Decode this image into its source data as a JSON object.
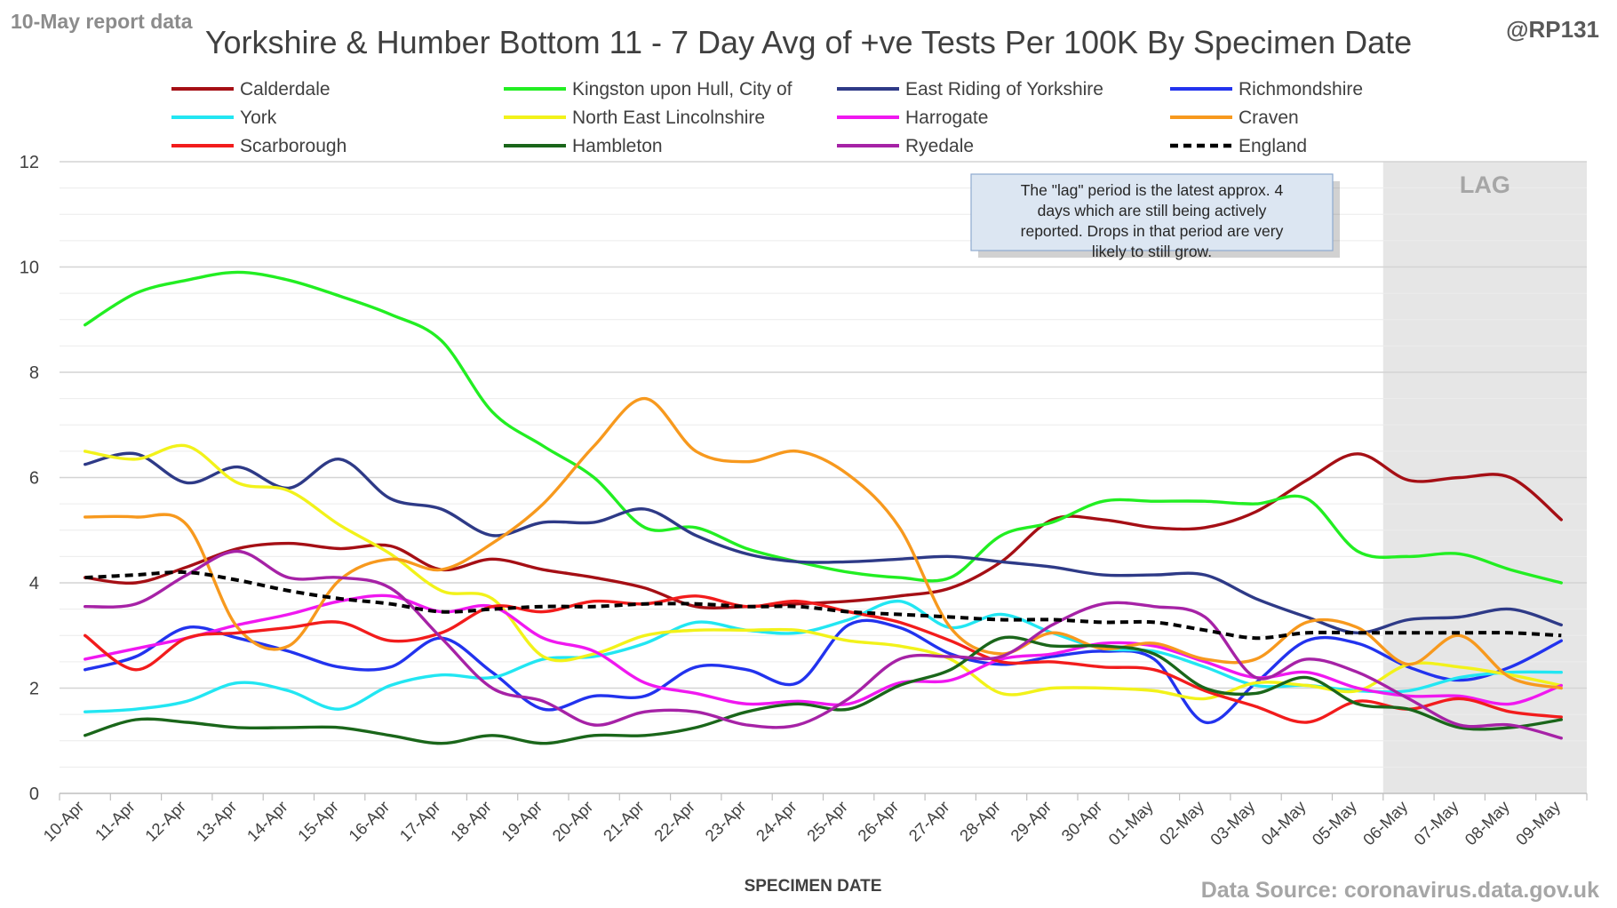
{
  "chart_data": {
    "type": "line",
    "title": "Yorkshire & Humber Bottom 11 - 7 Day Avg of +ve Tests Per 100K By Specimen Date",
    "corner_left": "10-May report data",
    "corner_right": "@RP131",
    "xlabel": "SPECIMEN DATE",
    "ylabel": "",
    "source": "Data Source: coronavirus.data.gov.uk",
    "ylim": [
      0,
      12
    ],
    "yticks": [
      0,
      2,
      4,
      6,
      8,
      10,
      12
    ],
    "grid": true,
    "legend_position": "top",
    "lag_label": "LAG",
    "lag_start_index": 26,
    "annotation": "The \"lag\" period is the latest approx. 4 days which are still being actively reported. Drops in that period are very likely to still grow.",
    "categories": [
      "10-Apr",
      "11-Apr",
      "12-Apr",
      "13-Apr",
      "14-Apr",
      "15-Apr",
      "16-Apr",
      "17-Apr",
      "18-Apr",
      "19-Apr",
      "20-Apr",
      "21-Apr",
      "22-Apr",
      "23-Apr",
      "24-Apr",
      "25-Apr",
      "26-Apr",
      "27-Apr",
      "28-Apr",
      "29-Apr",
      "30-Apr",
      "01-May",
      "02-May",
      "03-May",
      "04-May",
      "05-May",
      "06-May",
      "07-May",
      "08-May",
      "09-May"
    ],
    "series": [
      {
        "name": "Calderdale",
        "color": "#a50f15",
        "dashed": false,
        "values": [
          4.1,
          4.0,
          4.3,
          4.65,
          4.75,
          4.65,
          4.7,
          4.25,
          4.45,
          4.25,
          4.1,
          3.9,
          3.55,
          3.55,
          3.6,
          3.65,
          3.75,
          3.9,
          4.4,
          5.2,
          5.2,
          5.05,
          5.05,
          5.35,
          5.95,
          6.45,
          5.95,
          6.0,
          6.0,
          5.2
        ]
      },
      {
        "name": "Kingston upon Hull, City of",
        "color": "#22ee22",
        "dashed": false,
        "values": [
          8.9,
          9.5,
          9.75,
          9.9,
          9.75,
          9.45,
          9.1,
          8.6,
          7.25,
          6.6,
          6.0,
          5.05,
          5.05,
          4.65,
          4.4,
          4.2,
          4.1,
          4.1,
          4.9,
          5.15,
          5.55,
          5.55,
          5.55,
          5.5,
          5.6,
          4.6,
          4.5,
          4.55,
          4.25,
          4.0
        ]
      },
      {
        "name": "East Riding of Yorkshire",
        "color": "#2e3a87",
        "dashed": false,
        "values": [
          6.25,
          6.45,
          5.9,
          6.2,
          5.8,
          6.35,
          5.6,
          5.4,
          4.9,
          5.15,
          5.15,
          5.4,
          4.9,
          4.55,
          4.4,
          4.4,
          4.45,
          4.5,
          4.4,
          4.3,
          4.15,
          4.15,
          4.15,
          3.7,
          3.35,
          3.05,
          3.3,
          3.35,
          3.5,
          3.2
        ]
      },
      {
        "name": "Richmondshire",
        "color": "#2233ee",
        "dashed": false,
        "values": [
          2.35,
          2.6,
          3.15,
          2.95,
          2.7,
          2.4,
          2.4,
          2.95,
          2.3,
          1.6,
          1.85,
          1.85,
          2.4,
          2.35,
          2.1,
          3.2,
          3.15,
          2.65,
          2.45,
          2.6,
          2.7,
          2.55,
          1.35,
          2.1,
          2.9,
          2.85,
          2.4,
          2.15,
          2.4,
          2.9
        ]
      },
      {
        "name": "York",
        "color": "#22e6f2",
        "dashed": false,
        "values": [
          1.55,
          1.6,
          1.75,
          2.1,
          1.95,
          1.6,
          2.05,
          2.25,
          2.2,
          2.55,
          2.6,
          2.85,
          3.25,
          3.1,
          3.05,
          3.3,
          3.65,
          3.15,
          3.4,
          3.05,
          2.75,
          2.7,
          2.4,
          2.05,
          2.05,
          1.95,
          1.95,
          2.2,
          2.3,
          2.3
        ]
      },
      {
        "name": "North East Lincolnshire",
        "color": "#f2f21a",
        "dashed": false,
        "values": [
          6.5,
          6.35,
          6.6,
          5.9,
          5.75,
          5.1,
          4.55,
          3.85,
          3.7,
          2.6,
          2.65,
          3.0,
          3.1,
          3.1,
          3.1,
          2.9,
          2.8,
          2.55,
          1.9,
          2.0,
          2.0,
          1.95,
          1.8,
          2.1,
          2.05,
          1.95,
          2.45,
          2.4,
          2.25,
          2.05
        ]
      },
      {
        "name": "Harrogate",
        "color": "#f018f0",
        "dashed": false,
        "values": [
          2.55,
          2.75,
          2.95,
          3.2,
          3.4,
          3.65,
          3.75,
          3.45,
          3.55,
          2.95,
          2.7,
          2.1,
          1.9,
          1.7,
          1.75,
          1.7,
          2.1,
          2.15,
          2.55,
          2.65,
          2.85,
          2.8,
          2.5,
          2.2,
          2.3,
          2.0,
          1.85,
          1.85,
          1.7,
          2.05
        ]
      },
      {
        "name": "Craven",
        "color": "#f7991e",
        "dashed": false,
        "values": [
          5.25,
          5.25,
          5.1,
          3.15,
          2.8,
          4.05,
          4.45,
          4.25,
          4.75,
          5.5,
          6.6,
          7.5,
          6.5,
          6.3,
          6.5,
          6.05,
          5.05,
          3.15,
          2.65,
          3.05,
          2.75,
          2.85,
          2.55,
          2.55,
          3.25,
          3.15,
          2.45,
          3.0,
          2.2,
          2.0
        ]
      },
      {
        "name": "Scarborough",
        "color": "#f21c1c",
        "dashed": false,
        "values": [
          3.0,
          2.35,
          2.95,
          3.05,
          3.15,
          3.25,
          2.9,
          3.05,
          3.55,
          3.45,
          3.65,
          3.6,
          3.75,
          3.55,
          3.65,
          3.45,
          3.25,
          2.9,
          2.5,
          2.5,
          2.4,
          2.35,
          1.95,
          1.65,
          1.35,
          1.75,
          1.6,
          1.8,
          1.55,
          1.45
        ]
      },
      {
        "name": "Hambleton",
        "color": "#1a661a",
        "dashed": false,
        "values": [
          1.1,
          1.4,
          1.35,
          1.25,
          1.25,
          1.25,
          1.1,
          0.95,
          1.1,
          0.95,
          1.1,
          1.1,
          1.25,
          1.55,
          1.7,
          1.6,
          2.05,
          2.35,
          2.95,
          2.8,
          2.8,
          2.65,
          2.0,
          1.9,
          2.2,
          1.7,
          1.6,
          1.25,
          1.25,
          1.4
        ]
      },
      {
        "name": "Ryedale",
        "color": "#a622a6",
        "dashed": false,
        "values": [
          3.55,
          3.6,
          4.15,
          4.6,
          4.1,
          4.1,
          3.9,
          2.95,
          2.0,
          1.75,
          1.3,
          1.55,
          1.55,
          1.3,
          1.3,
          1.8,
          2.55,
          2.6,
          2.6,
          3.2,
          3.6,
          3.55,
          3.35,
          2.2,
          2.55,
          2.3,
          1.8,
          1.3,
          1.3,
          1.05
        ]
      },
      {
        "name": "England",
        "color": "#000000",
        "dashed": true,
        "values": [
          4.1,
          4.15,
          4.2,
          4.05,
          3.85,
          3.7,
          3.6,
          3.45,
          3.5,
          3.55,
          3.55,
          3.6,
          3.6,
          3.55,
          3.55,
          3.45,
          3.4,
          3.35,
          3.3,
          3.3,
          3.25,
          3.25,
          3.1,
          2.95,
          3.05,
          3.05,
          3.05,
          3.05,
          3.05,
          3.0
        ]
      }
    ]
  }
}
